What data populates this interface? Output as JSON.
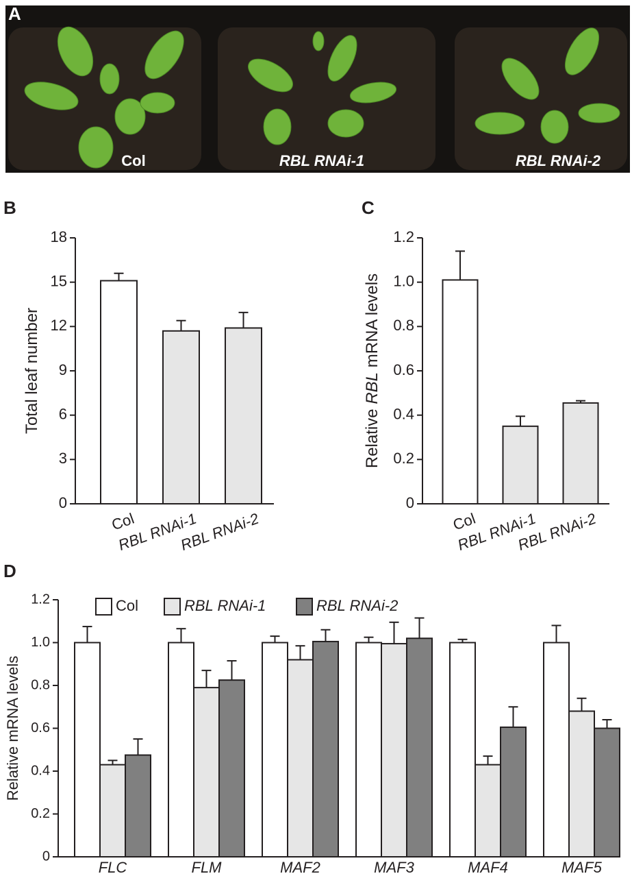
{
  "panel_labels": [
    "A",
    "B",
    "C",
    "D"
  ],
  "photo_labels": [
    "Col",
    "RBL RNAi-1",
    "RBL RNAi-2"
  ],
  "chart_data": [
    {
      "type": "bar",
      "ylabel": [
        "Total leaf number"
      ],
      "categories": [
        "Col",
        "RBL RNAi-1",
        "RBL RNAi-2"
      ],
      "category_italic": [
        false,
        true,
        true
      ],
      "values": [
        15.1,
        11.7,
        11.9
      ],
      "errors": [
        0.5,
        0.7,
        1.05
      ],
      "colors": [
        "#ffffff",
        "#e6e6e6",
        "#e6e6e6"
      ],
      "ylim": [
        0,
        18
      ],
      "yticks": [
        0,
        3,
        6,
        9,
        12,
        15,
        18
      ]
    },
    {
      "type": "bar",
      "ylabel": [
        "Relative",
        "RBL",
        "mRNA levels"
      ],
      "ylabel_italic": [
        false,
        true,
        false
      ],
      "categories": [
        "Col",
        "RBL RNAi-1",
        "RBL RNAi-2"
      ],
      "category_italic": [
        false,
        true,
        true
      ],
      "values": [
        1.01,
        0.35,
        0.455
      ],
      "errors": [
        0.13,
        0.045,
        0.01
      ],
      "colors": [
        "#ffffff",
        "#e6e6e6",
        "#e6e6e6"
      ],
      "ylim": [
        0,
        1.2
      ],
      "yticks": [
        0,
        0.2,
        0.4,
        0.6,
        0.8,
        {
          "value": 1,
          "label": "1.0"
        },
        1.2
      ]
    },
    {
      "type": "grouped_bar",
      "ylabel": [
        "Relative mRNA levels"
      ],
      "categories": [
        "FLC",
        "FLM",
        "MAF2",
        "MAF3",
        "MAF4",
        "MAF5"
      ],
      "category_italic": [
        true,
        true,
        true,
        true,
        true,
        true
      ],
      "series": [
        {
          "name": "Col",
          "italic": false,
          "color": "#ffffff",
          "values": [
            1.0,
            1.0,
            1.0,
            1.0,
            1.0,
            1.0
          ],
          "errors": [
            0.075,
            0.065,
            0.03,
            0.025,
            0.015,
            0.08
          ]
        },
        {
          "name": "RBL RNAi-1",
          "italic": true,
          "color": "#e6e6e6",
          "values": [
            0.43,
            0.79,
            0.92,
            0.995,
            0.43,
            0.68
          ],
          "errors": [
            0.02,
            0.08,
            0.065,
            0.1,
            0.04,
            0.06
          ]
        },
        {
          "name": "RBL RNAi-2",
          "italic": true,
          "color": "#808080",
          "values": [
            0.475,
            0.825,
            1.005,
            1.02,
            0.605,
            0.6
          ],
          "errors": [
            0.075,
            0.09,
            0.055,
            0.095,
            0.095,
            0.04
          ]
        }
      ],
      "ylim": [
        0,
        1.2
      ],
      "yticks": [
        0,
        0.2,
        0.4,
        0.6,
        0.8,
        {
          "value": 1,
          "label": "1.0"
        },
        1.2
      ]
    }
  ]
}
